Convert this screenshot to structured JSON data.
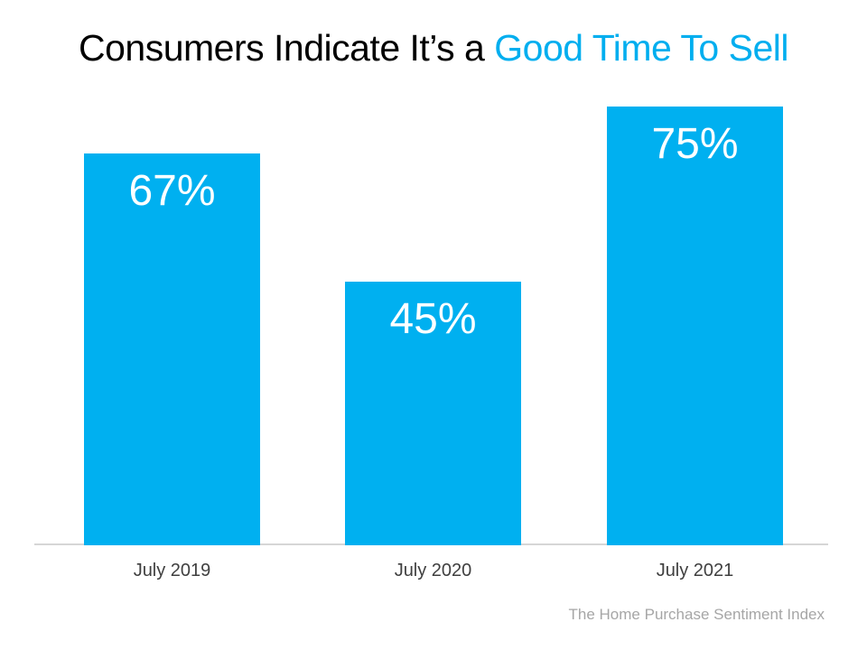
{
  "slide": {
    "title_part1": "Consumers Indicate It’s a ",
    "title_part2": "Good Time To Sell",
    "source": "The Home Purchase Sentiment Index"
  },
  "colors": {
    "background": "#FFFFFF",
    "title_text": "#000000",
    "title_accent": "#00AEEF",
    "bar_fill": "#00B0F0",
    "value_label": "#FFFFFF",
    "axis_line": "#D6D6D6",
    "category_label": "#3F3F3F",
    "source_text": "#A6A6A6"
  },
  "chart_data": {
    "type": "bar",
    "title": "Consumers Indicate It’s a Good Time To Sell",
    "categories": [
      "July 2019",
      "July 2020",
      "July 2021"
    ],
    "values": [
      67,
      45,
      75
    ],
    "value_labels": [
      "67%",
      "45%",
      "75%"
    ],
    "unit": "%",
    "xlabel": "",
    "ylabel": "",
    "ylim": [
      0,
      80
    ],
    "grid": false,
    "legend": false,
    "value_label_position": "inside-top",
    "bar_color": "#00B0F0",
    "source": "The Home Purchase Sentiment Index"
  }
}
